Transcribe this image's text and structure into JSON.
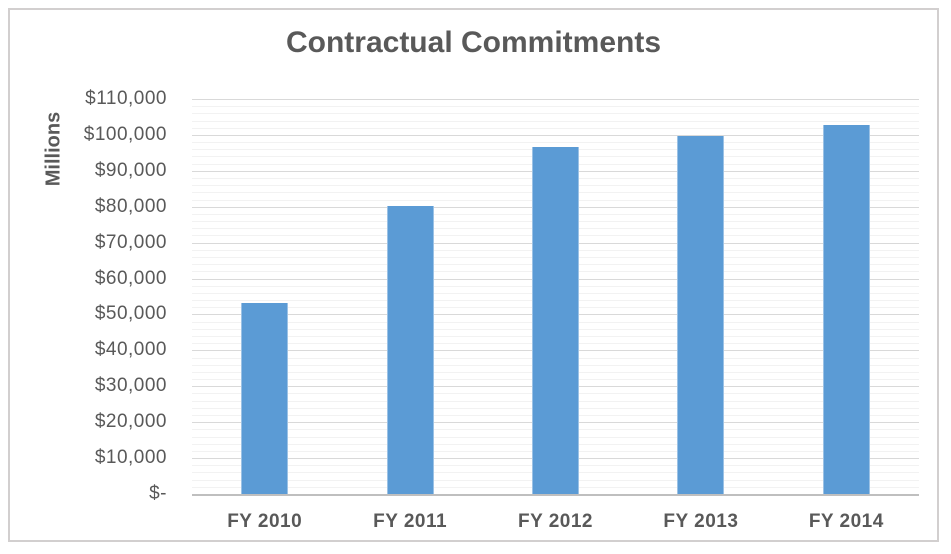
{
  "chart_data": {
    "type": "bar",
    "title": "Contractual Commitments",
    "xlabel": "",
    "ylabel": "Millions",
    "categories": [
      "FY 2010",
      "FY 2011",
      "FY 2012",
      "FY 2013",
      "FY 2014"
    ],
    "values": [
      53100,
      80200,
      96500,
      99700,
      102900
    ],
    "ylim": [
      0,
      110000
    ],
    "y_major_step": 10000,
    "y_minor_step": 2000,
    "y_tick_labels": [
      "$-",
      "$10,000",
      "$20,000",
      "$30,000",
      "$40,000",
      "$50,000",
      "$60,000",
      "$70,000",
      "$80,000",
      "$90,000",
      "$100,000",
      "$110,000"
    ],
    "grid": "major-and-minor-horizontal",
    "legend": "none",
    "colors": {
      "bar": "#5B9BD5",
      "bar_edge": "#9CC2E5",
      "text": "#595959",
      "major_grid": "#D9D9D9",
      "minor_grid": "#F2F2F2",
      "axis_line": "#BFBFBF",
      "frame_border": "#D2CFCF"
    }
  }
}
